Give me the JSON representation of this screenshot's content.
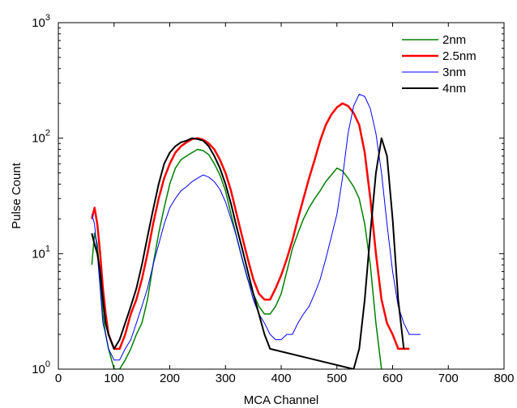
{
  "chart_data": {
    "type": "line",
    "title": "",
    "xlabel": "MCA Channel",
    "ylabel": "Pulse Count",
    "xlim": [
      0,
      800
    ],
    "ylim": [
      1,
      1000
    ],
    "yscale": "log",
    "grid": false,
    "legend_position": "top-right",
    "x_ticks": [
      "0",
      "100",
      "200",
      "300",
      "400",
      "500",
      "600",
      "700",
      "800"
    ],
    "y_ticks": [
      {
        "base": "10",
        "exp": "0"
      },
      {
        "base": "10",
        "exp": "1"
      },
      {
        "base": "10",
        "exp": "2"
      },
      {
        "base": "10",
        "exp": "3"
      }
    ],
    "series": [
      {
        "name": "2nm",
        "color": "#008000",
        "line_width": 1.5,
        "x": [
          60,
          65,
          70,
          75,
          80,
          85,
          90,
          100,
          110,
          120,
          130,
          140,
          150,
          160,
          170,
          180,
          190,
          200,
          210,
          220,
          230,
          240,
          250,
          260,
          270,
          280,
          290,
          300,
          310,
          320,
          330,
          340,
          350,
          360,
          370,
          380,
          390,
          400,
          410,
          420,
          430,
          440,
          450,
          460,
          470,
          480,
          490,
          500,
          510,
          520,
          530,
          540,
          550,
          560,
          570,
          580
        ],
        "y": [
          8,
          15,
          12,
          6,
          3,
          2,
          1.5,
          1,
          1,
          1.2,
          1.5,
          2,
          2.5,
          4,
          8,
          15,
          25,
          40,
          55,
          65,
          70,
          75,
          80,
          78,
          72,
          60,
          48,
          35,
          22,
          14,
          9,
          6,
          4.5,
          3.5,
          3,
          3,
          3.5,
          4.5,
          7,
          11,
          15,
          20,
          25,
          30,
          35,
          42,
          48,
          55,
          52,
          45,
          38,
          30,
          18,
          8,
          2.5,
          1
        ]
      },
      {
        "name": "2.5nm",
        "color": "#ff0000",
        "line_width": 2.5,
        "x": [
          60,
          65,
          70,
          75,
          80,
          85,
          90,
          100,
          110,
          120,
          130,
          140,
          150,
          160,
          170,
          180,
          190,
          200,
          210,
          220,
          230,
          240,
          250,
          260,
          270,
          280,
          290,
          300,
          310,
          320,
          330,
          340,
          350,
          360,
          370,
          380,
          390,
          400,
          410,
          420,
          430,
          440,
          450,
          460,
          470,
          480,
          490,
          500,
          510,
          520,
          530,
          540,
          550,
          560,
          570,
          580,
          590,
          600,
          610,
          620,
          630
        ],
        "y": [
          20,
          25,
          18,
          10,
          5,
          3,
          2,
          1.5,
          1.5,
          2,
          3,
          4,
          6,
          10,
          18,
          30,
          45,
          60,
          75,
          85,
          92,
          98,
          100,
          97,
          90,
          80,
          65,
          50,
          35,
          22,
          14,
          9,
          6,
          4.5,
          4,
          4,
          5,
          6.5,
          9,
          13,
          20,
          30,
          45,
          65,
          95,
          130,
          160,
          185,
          200,
          190,
          165,
          130,
          75,
          30,
          10,
          4,
          2.5,
          2,
          1.5,
          1.5,
          1.5
        ]
      },
      {
        "name": "3nm",
        "color": "#0000ff",
        "line_width": 1,
        "x": [
          60,
          65,
          70,
          75,
          80,
          85,
          90,
          100,
          110,
          120,
          130,
          140,
          150,
          160,
          170,
          180,
          190,
          200,
          210,
          220,
          230,
          240,
          250,
          260,
          270,
          280,
          290,
          300,
          310,
          320,
          330,
          340,
          350,
          360,
          370,
          380,
          390,
          400,
          410,
          420,
          430,
          440,
          450,
          460,
          470,
          480,
          490,
          500,
          510,
          520,
          530,
          540,
          550,
          560,
          570,
          580,
          590,
          600,
          610,
          620,
          630,
          640,
          650
        ],
        "y": [
          22,
          18,
          10,
          5,
          2.5,
          2,
          1.5,
          1.2,
          1.2,
          1.5,
          1.8,
          2.5,
          3.5,
          5,
          8,
          12,
          18,
          25,
          30,
          35,
          38,
          42,
          45,
          48,
          46,
          42,
          36,
          28,
          20,
          14,
          9,
          6,
          4,
          3,
          2.5,
          2,
          1.8,
          1.8,
          2,
          2,
          2.5,
          3,
          3.5,
          4.5,
          6,
          9,
          14,
          22,
          45,
          110,
          190,
          240,
          230,
          180,
          110,
          50,
          18,
          7,
          3.5,
          2.5,
          2,
          2,
          2
        ]
      },
      {
        "name": "4nm",
        "color": "#000000",
        "line_width": 2,
        "x": [
          60,
          65,
          70,
          75,
          80,
          85,
          90,
          100,
          110,
          120,
          130,
          140,
          150,
          160,
          170,
          180,
          190,
          200,
          210,
          220,
          230,
          240,
          250,
          260,
          270,
          280,
          290,
          300,
          310,
          320,
          330,
          340,
          350,
          360,
          370,
          380,
          530,
          540,
          550,
          560,
          570,
          580,
          590,
          600,
          610,
          620
        ],
        "y": [
          15,
          12,
          10,
          7,
          4,
          2.5,
          2,
          1.5,
          1.8,
          2.5,
          3.5,
          5,
          8,
          14,
          24,
          40,
          60,
          75,
          85,
          92,
          95,
          100,
          98,
          95,
          85,
          70,
          55,
          40,
          27,
          17,
          11,
          7,
          4.5,
          3,
          2,
          1.5,
          1,
          1.5,
          4,
          15,
          50,
          100,
          70,
          20,
          4,
          1.5
        ]
      }
    ]
  }
}
